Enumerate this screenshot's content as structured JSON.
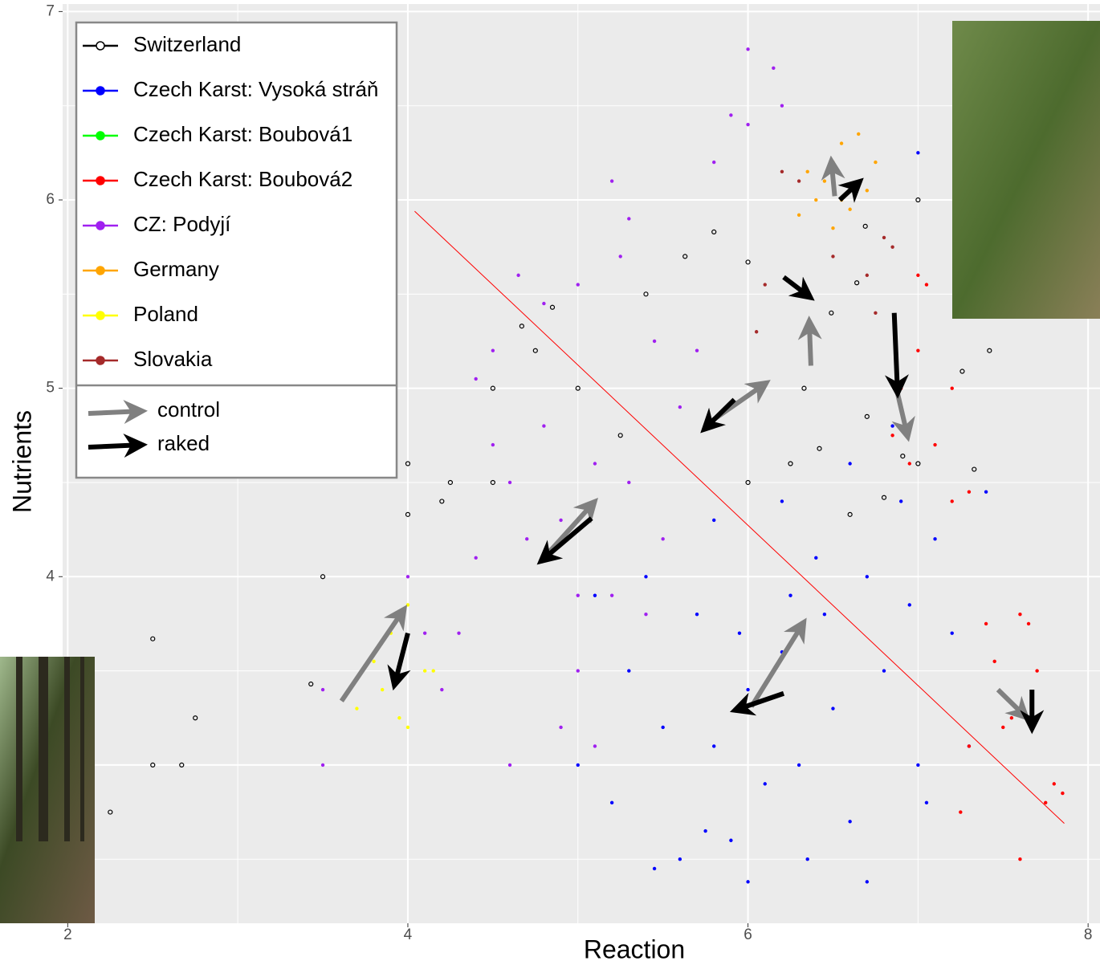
{
  "chart_data": {
    "type": "scatter",
    "xlabel": "Reaction",
    "ylabel": "Nutrients",
    "xlim": [
      1.97,
      8.07
    ],
    "ylim": [
      2.16,
      7.04
    ],
    "xticks": [
      2,
      4,
      6,
      8
    ],
    "yticks": [
      4,
      5,
      6,
      7
    ],
    "grid": true,
    "series": [
      {
        "name": "Switzerland",
        "color": "#000000",
        "marker": "open",
        "x": [
          2.25,
          2.5,
          2.5,
          2.67,
          2.75,
          3.5,
          3.43,
          4.0,
          4.0,
          4.2,
          4.25,
          4.5,
          4.5,
          4.67,
          4.75,
          4.85,
          5.0,
          5.25,
          5.4,
          5.8,
          5.63,
          6.0,
          6.0,
          7.0,
          7.0,
          7.42,
          7.26,
          7.33,
          6.69,
          6.64,
          6.49,
          6.33,
          6.42,
          6.6,
          6.8,
          6.7,
          6.91,
          6.25
        ],
        "y": [
          2.75,
          3.67,
          3.0,
          3.0,
          3.25,
          4.0,
          3.43,
          4.6,
          4.33,
          4.4,
          4.5,
          5.0,
          4.5,
          5.33,
          5.2,
          5.43,
          5.0,
          4.75,
          5.5,
          5.83,
          5.7,
          5.67,
          4.5,
          6.0,
          4.6,
          5.2,
          5.09,
          4.57,
          5.86,
          5.56,
          5.4,
          5.0,
          4.68,
          4.33,
          4.42,
          4.85,
          4.64,
          4.6
        ]
      },
      {
        "name": "Czech Karst: Vysoká stráň",
        "color": "#0000ff",
        "marker": "filled",
        "x": [
          5.0,
          5.2,
          5.3,
          5.5,
          5.6,
          5.7,
          5.8,
          5.9,
          6.0,
          6.1,
          6.2,
          6.3,
          6.4,
          6.5,
          6.6,
          6.7,
          6.8,
          6.9,
          7.0,
          7.1,
          7.2,
          7.3,
          7.4,
          5.4,
          5.8,
          6.2,
          6.6,
          7.0,
          6.35,
          5.75,
          6.95,
          5.1,
          6.0,
          6.7,
          5.95,
          6.45,
          7.05,
          6.85,
          5.45,
          6.25
        ],
        "y": [
          3.0,
          2.8,
          3.5,
          3.2,
          2.5,
          3.8,
          3.1,
          2.6,
          3.4,
          2.9,
          3.6,
          3.0,
          4.1,
          3.3,
          2.7,
          4.0,
          3.5,
          4.4,
          3.0,
          4.2,
          3.7,
          3.1,
          4.45,
          4.0,
          4.3,
          4.4,
          4.6,
          6.25,
          2.5,
          2.65,
          3.85,
          3.9,
          2.38,
          2.38,
          3.7,
          3.8,
          2.8,
          4.8,
          2.45,
          3.9
        ]
      },
      {
        "name": "Czech Karst: Boubová1",
        "color": "#00ff00",
        "marker": "filled",
        "x": [],
        "y": []
      },
      {
        "name": "Czech Karst: Boubová2",
        "color": "#ff0000",
        "marker": "filled",
        "x": [
          7.6,
          7.7,
          7.5,
          7.4,
          7.3,
          7.8,
          7.85,
          7.6,
          7.75,
          7.45,
          7.65,
          7.2,
          7.0,
          6.9,
          7.1,
          7.2,
          6.95,
          7.3,
          7.05,
          7.0,
          6.85,
          7.55,
          7.25
        ],
        "y": [
          3.8,
          3.5,
          3.2,
          3.75,
          3.1,
          2.9,
          2.85,
          2.5,
          2.8,
          3.55,
          3.75,
          5.0,
          5.2,
          5.0,
          4.7,
          4.4,
          4.6,
          4.45,
          5.55,
          5.6,
          4.75,
          3.25,
          2.75
        ]
      },
      {
        "name": "CZ: Podyjí",
        "color": "#a020f0",
        "marker": "filled",
        "x": [
          4.6,
          4.7,
          4.8,
          4.9,
          5.0,
          5.1,
          5.2,
          4.4,
          4.5,
          4.3,
          4.2,
          4.0,
          3.9,
          4.6,
          5.0,
          5.3,
          5.4,
          5.5,
          5.6,
          5.7,
          5.8,
          6.0,
          6.15,
          6.2,
          5.9,
          6.0,
          5.2,
          5.0,
          5.3,
          4.8,
          4.5,
          4.65,
          3.5,
          3.5,
          4.1,
          4.4,
          4.9,
          5.1,
          5.25,
          5.45
        ],
        "y": [
          4.5,
          4.2,
          4.8,
          4.3,
          3.5,
          4.6,
          3.9,
          4.1,
          4.7,
          3.7,
          3.4,
          4.0,
          4.9,
          3.0,
          3.9,
          4.5,
          3.8,
          4.2,
          4.9,
          5.2,
          6.2,
          6.8,
          6.7,
          6.5,
          6.45,
          6.4,
          6.1,
          5.55,
          5.9,
          5.45,
          5.2,
          5.6,
          3.0,
          3.4,
          3.7,
          5.05,
          3.2,
          3.1,
          5.7,
          5.25
        ]
      },
      {
        "name": "Germany",
        "color": "#ffa500",
        "marker": "filled",
        "x": [
          6.45,
          6.5,
          6.55,
          6.6,
          6.4,
          6.7,
          6.35,
          6.65,
          6.5,
          6.75,
          6.3,
          6.55
        ],
        "y": [
          6.1,
          6.2,
          6.3,
          5.95,
          6.0,
          6.05,
          6.15,
          6.35,
          5.85,
          6.2,
          5.92,
          6.0
        ]
      },
      {
        "name": "Poland",
        "color": "#ffff00",
        "marker": "filled",
        "x": [
          3.9,
          4.0,
          3.8,
          4.1,
          3.85,
          3.95,
          4.15,
          3.7,
          4.0
        ],
        "y": [
          3.7,
          3.85,
          3.55,
          3.5,
          3.4,
          3.25,
          3.5,
          3.3,
          3.2
        ]
      },
      {
        "name": "Slovakia",
        "color": "#a52a2a",
        "marker": "filled",
        "x": [
          6.1,
          6.2,
          6.3,
          6.8,
          6.85,
          6.75,
          6.5,
          6.7,
          6.05
        ],
        "y": [
          5.55,
          6.15,
          6.1,
          5.8,
          5.75,
          5.4,
          5.7,
          5.6,
          5.3
        ]
      }
    ],
    "arrow_series": [
      {
        "name": "control",
        "color": "#808080",
        "x0": [
          3.61,
          4.82,
          5.76,
          6.37,
          6.51,
          6.02,
          6.87,
          7.47
        ],
        "y0": [
          3.34,
          4.12,
          4.81,
          5.12,
          6.02,
          3.31,
          5.01,
          3.4
        ],
        "x1": [
          3.98,
          5.1,
          6.11,
          6.36,
          6.49,
          6.33,
          6.94,
          7.64
        ],
        "y1": [
          3.83,
          4.4,
          5.03,
          5.36,
          6.21,
          3.76,
          4.74,
          3.25
        ]
      },
      {
        "name": "raked",
        "color": "#000000",
        "x0": [
          4.0,
          5.08,
          5.92,
          6.21,
          6.54,
          6.21,
          6.86,
          7.67
        ],
        "y0": [
          3.7,
          4.31,
          4.94,
          5.59,
          6.0,
          3.38,
          5.4,
          3.4
        ],
        "x1": [
          3.92,
          4.78,
          5.74,
          6.37,
          6.66,
          5.92,
          6.88,
          7.67
        ],
        "y1": [
          3.42,
          4.08,
          4.78,
          5.48,
          6.1,
          3.29,
          4.97,
          3.19
        ]
      }
    ],
    "trend_line": {
      "color": "#ff0000",
      "x": [
        4.04,
        7.86
      ],
      "y": [
        5.94,
        2.69
      ]
    }
  }
}
